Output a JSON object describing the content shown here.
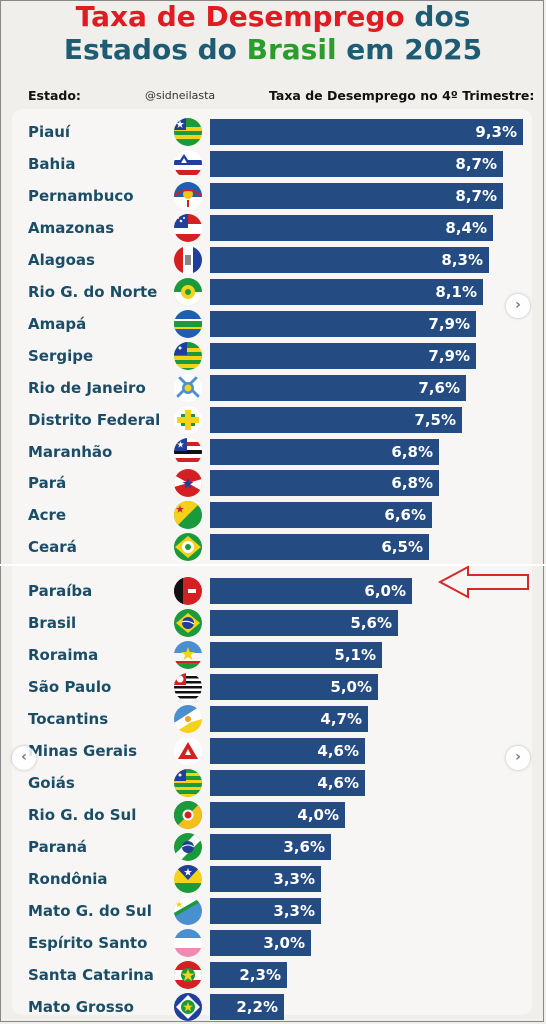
{
  "title": {
    "line1_part1": "Taxa de Desemprego",
    "line1_part2": "dos",
    "line2_part1": "Estados do",
    "line2_part2": "Brasil",
    "line2_part3": "em 2025"
  },
  "header": {
    "state_label": "Estado:",
    "handle": "@sidneilasta",
    "rate_label": "Taxa de Desemprego no 4º Trimestre:"
  },
  "colors": {
    "bar": "#244b82",
    "label": "#1a4e68",
    "title_red": "#e01b22",
    "title_teal": "#1e5c74",
    "title_green": "#2a9d2a",
    "arrow": "#d62828"
  },
  "chart_data": {
    "type": "bar",
    "orientation": "horizontal",
    "highlight": "Paraíba",
    "categories": [
      "Piauí",
      "Bahia",
      "Pernambuco",
      "Amazonas",
      "Alagoas",
      "Rio G. do Norte",
      "Amapá",
      "Sergipe",
      "Rio de Janeiro",
      "Distrito Federal",
      "Maranhão",
      "Pará",
      "Acre",
      "Ceará",
      "Paraíba",
      "Brasil",
      "Roraima",
      "São Paulo",
      "Tocantins",
      "Minas Gerais",
      "Goiás",
      "Rio G. do Sul",
      "Paraná",
      "Rondônia",
      "Mato G. do Sul",
      "Espírito Santo",
      "Santa Catarina",
      "Mato Grosso"
    ],
    "values": [
      9.3,
      8.7,
      8.7,
      8.4,
      8.3,
      8.1,
      7.9,
      7.9,
      7.6,
      7.5,
      6.8,
      6.8,
      6.6,
      6.5,
      6.0,
      5.6,
      5.1,
      5.0,
      4.7,
      4.6,
      4.6,
      4.0,
      3.6,
      3.3,
      3.3,
      3.0,
      2.3,
      2.2
    ],
    "value_labels": [
      "9,3%",
      "8,7%",
      "8,7%",
      "8,4%",
      "8,3%",
      "8,1%",
      "7,9%",
      "7,9%",
      "7,6%",
      "7,5%",
      "6,8%",
      "6,8%",
      "6,6%",
      "6,5%",
      "6,0%",
      "5,6%",
      "5,1%",
      "5,0%",
      "4,7%",
      "4,6%",
      "4,6%",
      "4,0%",
      "3,6%",
      "3,3%",
      "3,3%",
      "3,0%",
      "2,3%",
      "2,2%"
    ],
    "flag_icons": [
      "piaui-flag-icon",
      "bahia-flag-icon",
      "pernambuco-flag-icon",
      "amazonas-flag-icon",
      "alagoas-flag-icon",
      "rio-grande-do-norte-flag-icon",
      "amapa-flag-icon",
      "sergipe-flag-icon",
      "rio-de-janeiro-flag-icon",
      "distrito-federal-flag-icon",
      "maranhao-flag-icon",
      "para-flag-icon",
      "acre-flag-icon",
      "ceara-flag-icon",
      "paraiba-flag-icon",
      "brasil-flag-icon",
      "roraima-flag-icon",
      "sao-paulo-flag-icon",
      "tocantins-flag-icon",
      "minas-gerais-flag-icon",
      "goias-flag-icon",
      "rio-grande-do-sul-flag-icon",
      "parana-flag-icon",
      "rondonia-flag-icon",
      "mato-grosso-do-sul-flag-icon",
      "espirito-santo-flag-icon",
      "santa-catarina-flag-icon",
      "mato-grosso-flag-icon"
    ],
    "xlim": [
      0,
      9.3
    ]
  },
  "nav": {
    "next_icon": "chevron-right-icon",
    "prev_icon": "chevron-left-icon"
  }
}
